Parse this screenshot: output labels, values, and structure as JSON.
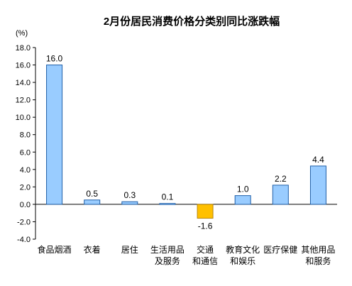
{
  "chart_data": {
    "type": "bar",
    "title": "2月份居民消费价格分类别同比涨跌幅",
    "ylabel": "(%)",
    "xlabel": "",
    "ylim": [
      -4.0,
      18.0
    ],
    "yticks": [
      "18.0",
      "16.0",
      "14.0",
      "12.0",
      "10.0",
      "8.0",
      "6.0",
      "4.0",
      "2.0",
      "0.0",
      "-2.0",
      "-4.0"
    ],
    "grid": false,
    "categories": [
      [
        "食品烟酒"
      ],
      [
        "衣着"
      ],
      [
        "居住"
      ],
      [
        "生活用品",
        "及服务"
      ],
      [
        "交通",
        "和通信"
      ],
      [
        "教育文化",
        "和娱乐"
      ],
      [
        "医疗保健"
      ],
      [
        "其他用品",
        "和服务"
      ]
    ],
    "values": [
      16.0,
      0.5,
      0.3,
      0.1,
      -1.6,
      1.0,
      2.2,
      4.4
    ],
    "value_labels": [
      "16.0",
      "0.5",
      "0.3",
      "0.1",
      "-1.6",
      "1.0",
      "2.2",
      "4.4"
    ],
    "colors": {
      "positive_fill": "#99ccff",
      "positive_stroke": "#1f5fa8",
      "negative_fill": "#ffc000",
      "negative_stroke": "#b8860b",
      "axis": "#000000"
    }
  }
}
